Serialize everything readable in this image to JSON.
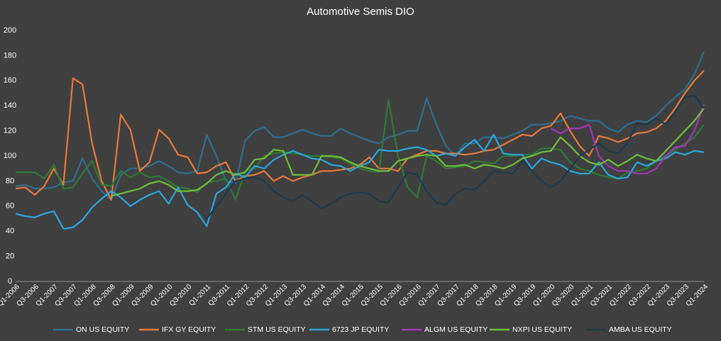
{
  "chart_data": {
    "type": "line",
    "title": "Automotive Semis DIO",
    "categories": [
      "Q1-2006",
      null,
      "Q3-2006",
      null,
      "Q1-2007",
      null,
      "Q3-2007",
      null,
      "Q1-2008",
      null,
      "Q3-2008",
      null,
      "Q1-2009",
      null,
      "Q3-2009",
      null,
      "Q1-2010",
      null,
      "Q3-2010",
      null,
      "Q1-2011",
      null,
      "Q3-2011",
      null,
      "Q1-2012",
      null,
      "Q3-2012",
      null,
      "Q1-2013",
      null,
      "Q3-2013",
      null,
      "Q1-2014",
      null,
      "Q3-2014",
      null,
      "Q1-2015",
      null,
      "Q3-2015",
      null,
      "Q1-2016",
      null,
      "Q3-2016",
      null,
      "Q1-2017",
      null,
      "Q3-2017",
      null,
      "Q1-2018",
      null,
      "Q3-2018",
      null,
      "Q1-2019",
      null,
      "Q3-2019",
      null,
      "Q1-2020",
      null,
      "Q3-2020",
      null,
      "Q1-2021",
      null,
      "Q3-2021",
      null,
      "Q1-2022",
      null,
      "Q3-2022",
      null,
      "Q1-2023",
      null,
      "Q3-2023",
      null,
      "Q1-2024"
    ],
    "series": [
      {
        "name": "ON US EQUITY",
        "color": "#2f6e91",
        "values": [
          76,
          77,
          74,
          74,
          75,
          79,
          80,
          98,
          82,
          72,
          65,
          85,
          90,
          90,
          92,
          96,
          92,
          87,
          86,
          88,
          117,
          100,
          80,
          78,
          112,
          120,
          123,
          115,
          115,
          118,
          121,
          118,
          116,
          116,
          122,
          118,
          115,
          112,
          110,
          115,
          117,
          120,
          120,
          146,
          125,
          108,
          100,
          110,
          110,
          115,
          115,
          114,
          117,
          120,
          125,
          125,
          126,
          128,
          132,
          130,
          128,
          128,
          122,
          119,
          125,
          128,
          127,
          132,
          140,
          147,
          153,
          165,
          183
        ]
      },
      {
        "name": "IFX GY EQUITY",
        "color": "#e8793a",
        "values": [
          74,
          75,
          69,
          76,
          90,
          77,
          162,
          157,
          110,
          80,
          65,
          133,
          121,
          88,
          95,
          121,
          114,
          101,
          99,
          86,
          87,
          92,
          95,
          80,
          84,
          85,
          88,
          80,
          84,
          80,
          83,
          85,
          88,
          88,
          89,
          90,
          93,
          99,
          90,
          90,
          88,
          98,
          101,
          104,
          104,
          102,
          102,
          101,
          102,
          104,
          105,
          109,
          113,
          117,
          116,
          122,
          124,
          134,
          120,
          108,
          100,
          116,
          114,
          111,
          114,
          118,
          119,
          122,
          128,
          138,
          150,
          160,
          168
        ]
      },
      {
        "name": "STM US EQUITY",
        "color": "#2f7a34",
        "values": [
          87,
          87,
          87,
          82,
          93,
          74,
          75,
          86,
          96,
          77,
          76,
          88,
          83,
          87,
          83,
          84,
          80,
          75,
          74,
          71,
          79,
          80,
          82,
          65,
          88,
          90,
          100,
          102,
          103,
          102,
          101,
          100,
          100,
          99,
          98,
          94,
          90,
          88,
          87,
          145,
          100,
          75,
          67,
          100,
          96,
          90,
          91,
          92,
          96,
          95,
          94,
          100,
          100,
          101,
          101,
          106,
          106,
          105,
          95,
          90,
          88,
          85,
          83,
          82,
          87,
          88,
          90,
          96,
          100,
          105,
          110,
          115,
          125
        ]
      },
      {
        "name": "6723 JP EQUITY",
        "color": "#2aa7e1",
        "values": [
          54,
          52,
          51,
          54,
          56,
          42,
          43,
          49,
          59,
          66,
          72,
          67,
          60,
          65,
          69,
          72,
          62,
          75,
          61,
          55,
          44,
          70,
          75,
          86,
          83,
          92,
          90,
          97,
          101,
          104,
          101,
          98,
          97,
          93,
          92,
          88,
          92,
          95,
          105,
          104,
          104,
          106,
          107,
          105,
          100,
          102,
          100,
          107,
          113,
          104,
          117,
          102,
          101,
          101,
          90,
          98,
          95,
          93,
          88,
          86,
          86,
          95,
          85,
          82,
          83,
          95,
          92,
          96,
          98,
          103,
          101,
          104,
          103
        ]
      },
      {
        "name": "ALGM US EQUITY",
        "color": "#a335b8",
        "values": [
          null,
          null,
          null,
          null,
          null,
          null,
          null,
          null,
          null,
          null,
          null,
          null,
          null,
          null,
          null,
          null,
          null,
          null,
          null,
          null,
          null,
          null,
          null,
          null,
          null,
          null,
          null,
          null,
          null,
          null,
          null,
          null,
          null,
          null,
          null,
          null,
          null,
          null,
          null,
          null,
          null,
          null,
          null,
          null,
          null,
          null,
          null,
          null,
          null,
          null,
          null,
          null,
          null,
          null,
          null,
          null,
          122,
          118,
          122,
          122,
          125,
          100,
          92,
          88,
          88,
          86,
          86,
          90,
          100,
          107,
          108,
          120,
          141
        ]
      },
      {
        "name": "NXPI US EQUITY",
        "color": "#6fbf3a",
        "values": [
          null,
          null,
          null,
          null,
          null,
          null,
          null,
          null,
          null,
          null,
          68,
          70,
          72,
          74,
          78,
          80,
          77,
          72,
          72,
          73,
          78,
          85,
          88,
          85,
          87,
          97,
          98,
          105,
          104,
          85,
          85,
          85,
          100,
          100,
          99,
          95,
          92,
          90,
          88,
          88,
          96,
          98,
          100,
          101,
          100,
          92,
          92,
          93,
          90,
          93,
          92,
          90,
          93,
          98,
          100,
          103,
          104,
          115,
          108,
          100,
          95,
          93,
          97,
          92,
          96,
          101,
          98,
          96,
          104,
          112,
          120,
          128,
          138
        ]
      },
      {
        "name": "AMBA US EQUITY",
        "color": "#1b3a4f",
        "values": [
          null,
          null,
          null,
          null,
          null,
          null,
          null,
          null,
          null,
          null,
          null,
          null,
          null,
          null,
          null,
          null,
          null,
          null,
          null,
          null,
          50,
          60,
          70,
          80,
          82,
          83,
          80,
          72,
          67,
          64,
          69,
          64,
          58,
          62,
          67,
          70,
          71,
          70,
          64,
          63,
          75,
          87,
          85,
          72,
          63,
          61,
          70,
          74,
          73,
          80,
          88,
          87,
          86,
          96,
          88,
          80,
          75,
          80,
          90,
          100,
          105,
          110,
          104,
          102,
          110,
          126,
          125,
          130,
          125,
          135,
          147,
          148,
          138
        ]
      }
    ],
    "ylim": [
      0,
      200
    ],
    "yticks": [
      0,
      20,
      40,
      60,
      80,
      100,
      120,
      140,
      160,
      180,
      200
    ],
    "grid": false,
    "legend": "bottom"
  }
}
